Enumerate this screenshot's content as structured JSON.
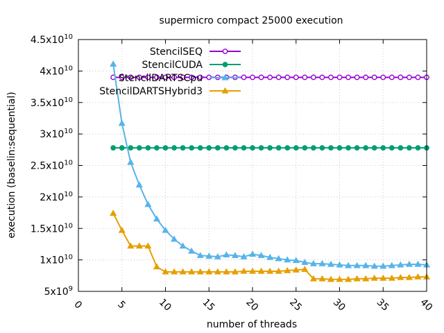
{
  "chart_data": {
    "type": "line",
    "title": "supermicro compact 25000 execution",
    "xlabel": "number of threads",
    "ylabel": "execution (baselin:sequential)",
    "xlim": [
      0,
      40
    ],
    "ylim": [
      5000000000,
      45000000000
    ],
    "x_ticks": [
      0,
      5,
      10,
      15,
      20,
      25,
      30,
      35,
      40
    ],
    "y_ticks": [
      {
        "value": 5000000000,
        "mantissa": "5x10",
        "exp": "9"
      },
      {
        "value": 10000000000,
        "mantissa": "1x10",
        "exp": "10"
      },
      {
        "value": 15000000000,
        "mantissa": "1.5x10",
        "exp": "10"
      },
      {
        "value": 20000000000,
        "mantissa": "2x10",
        "exp": "10"
      },
      {
        "value": 25000000000,
        "mantissa": "2.5x10",
        "exp": "10"
      },
      {
        "value": 30000000000,
        "mantissa": "3x10",
        "exp": "10"
      },
      {
        "value": 35000000000,
        "mantissa": "3.5x10",
        "exp": "10"
      },
      {
        "value": 40000000000,
        "mantissa": "4x10",
        "exp": "10"
      },
      {
        "value": 45000000000,
        "mantissa": "4.5x10",
        "exp": "10"
      }
    ],
    "grid": true,
    "legend_position": "top-right",
    "x": [
      4,
      5,
      6,
      7,
      8,
      9,
      10,
      11,
      12,
      13,
      14,
      15,
      16,
      17,
      18,
      19,
      20,
      21,
      22,
      23,
      24,
      25,
      26,
      27,
      28,
      29,
      30,
      31,
      32,
      33,
      34,
      35,
      36,
      37,
      38,
      39,
      40
    ],
    "series": [
      {
        "name": "StencilSEQ",
        "color": "#9400d3",
        "marker": "circle-open",
        "values": [
          39000000000,
          39000000000,
          39000000000,
          39000000000,
          39000000000,
          39000000000,
          39000000000,
          39000000000,
          39000000000,
          39000000000,
          39000000000,
          39000000000,
          39000000000,
          39000000000,
          39000000000,
          39000000000,
          39000000000,
          39000000000,
          39000000000,
          39000000000,
          39000000000,
          39000000000,
          39000000000,
          39000000000,
          39000000000,
          39000000000,
          39000000000,
          39000000000,
          39000000000,
          39000000000,
          39000000000,
          39000000000,
          39000000000,
          39000000000,
          39000000000,
          39000000000,
          39000000000
        ]
      },
      {
        "name": "StencilCUDA",
        "color": "#009e73",
        "marker": "circle-filled",
        "values": [
          27800000000,
          27800000000,
          27800000000,
          27800000000,
          27800000000,
          27800000000,
          27800000000,
          27800000000,
          27800000000,
          27800000000,
          27800000000,
          27800000000,
          27800000000,
          27800000000,
          27800000000,
          27800000000,
          27800000000,
          27800000000,
          27800000000,
          27800000000,
          27800000000,
          27800000000,
          27800000000,
          27800000000,
          27800000000,
          27800000000,
          27800000000,
          27800000000,
          27800000000,
          27800000000,
          27800000000,
          27800000000,
          27800000000,
          27800000000,
          27800000000,
          27800000000,
          27800000000
        ]
      },
      {
        "name": "StencilDARTSCpu",
        "color": "#56b4e9",
        "marker": "triangle-filled",
        "values": [
          41100000000,
          31700000000,
          25500000000,
          21900000000,
          18800000000,
          16500000000,
          14700000000,
          13300000000,
          12200000000,
          11400000000,
          10700000000,
          10600000000,
          10500000000,
          10800000000,
          10700000000,
          10500000000,
          10900000000,
          10700000000,
          10400000000,
          10200000000,
          10000000000,
          9900000000,
          9600000000,
          9400000000,
          9400000000,
          9300000000,
          9200000000,
          9100000000,
          9100000000,
          9100000000,
          9000000000,
          9000000000,
          9100000000,
          9200000000,
          9300000000,
          9300000000,
          9200000000
        ]
      },
      {
        "name": "StencilDARTSHybrid3",
        "color": "#e69f00",
        "marker": "triangle-filled",
        "values": [
          17400000000,
          14700000000,
          12200000000,
          12200000000,
          12200000000,
          8900000000,
          8100000000,
          8100000000,
          8100000000,
          8100000000,
          8100000000,
          8100000000,
          8100000000,
          8100000000,
          8100000000,
          8200000000,
          8200000000,
          8200000000,
          8200000000,
          8200000000,
          8300000000,
          8400000000,
          8500000000,
          7000000000,
          7000000000,
          6900000000,
          6900000000,
          6900000000,
          7000000000,
          7000000000,
          7100000000,
          7100000000,
          7100000000,
          7200000000,
          7200000000,
          7300000000,
          7300000000
        ]
      }
    ]
  }
}
